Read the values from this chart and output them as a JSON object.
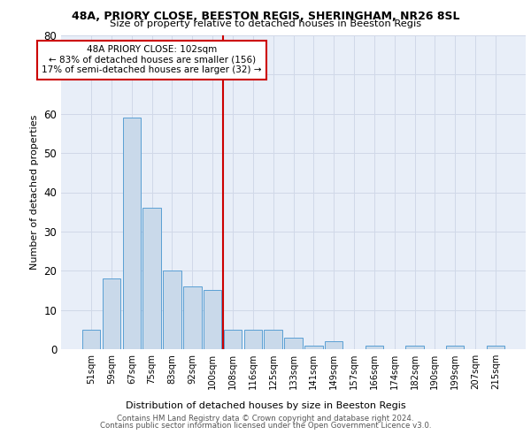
{
  "title1": "48A, PRIORY CLOSE, BEESTON REGIS, SHERINGHAM, NR26 8SL",
  "title2": "Size of property relative to detached houses in Beeston Regis",
  "xlabel": "Distribution of detached houses by size in Beeston Regis",
  "ylabel": "Number of detached properties",
  "categories": [
    "51sqm",
    "59sqm",
    "67sqm",
    "75sqm",
    "83sqm",
    "92sqm",
    "100sqm",
    "108sqm",
    "116sqm",
    "125sqm",
    "133sqm",
    "141sqm",
    "149sqm",
    "157sqm",
    "166sqm",
    "174sqm",
    "182sqm",
    "190sqm",
    "199sqm",
    "207sqm",
    "215sqm"
  ],
  "values": [
    5,
    18,
    59,
    36,
    20,
    16,
    15,
    5,
    5,
    5,
    3,
    1,
    2,
    0,
    1,
    0,
    1,
    0,
    1,
    0,
    1
  ],
  "bar_color": "#c9d9ea",
  "bar_edge_color": "#5a9fd4",
  "grid_color": "#d0d8e8",
  "bg_color": "#e8eef8",
  "annotation_box_text": "48A PRIORY CLOSE: 102sqm\n← 83% of detached houses are smaller (156)\n17% of semi-detached houses are larger (32) →",
  "annotation_box_color": "#ffffff",
  "annotation_box_edge_color": "#cc0000",
  "red_line_color": "#cc0000",
  "footnote1": "Contains HM Land Registry data © Crown copyright and database right 2024.",
  "footnote2": "Contains public sector information licensed under the Open Government Licence v3.0.",
  "ylim": [
    0,
    80
  ],
  "yticks": [
    0,
    10,
    20,
    30,
    40,
    50,
    60,
    70,
    80
  ]
}
